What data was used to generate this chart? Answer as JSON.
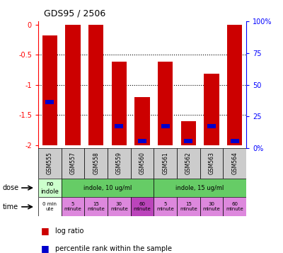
{
  "title": "GDS95 / 2506",
  "samples": [
    "GSM555",
    "GSM557",
    "GSM558",
    "GSM559",
    "GSM560",
    "GSM561",
    "GSM562",
    "GSM563",
    "GSM564"
  ],
  "log_ratio": [
    -0.18,
    0.0,
    0.0,
    -0.62,
    -1.2,
    -0.62,
    -1.6,
    -0.82,
    0.0
  ],
  "blue_y": [
    -1.32,
    null,
    null,
    -1.72,
    -1.97,
    -1.72,
    -1.97,
    -1.72,
    -1.97
  ],
  "ylim_left": [
    -2.05,
    0.05
  ],
  "yticks_left": [
    0,
    -0.5,
    -1.0,
    -1.5,
    -2.0
  ],
  "ytick_labels_left": [
    "0",
    "-0.5",
    "-1",
    "-1.5",
    "-2"
  ],
  "yticks_right": [
    0,
    25,
    50,
    75,
    100
  ],
  "ytick_labels_right": [
    "0%",
    "25",
    "50",
    "75",
    "100%"
  ],
  "bar_color": "#cc0000",
  "pct_color": "#0000cc",
  "chart_bg": "#ffffff",
  "sample_label_bg": "#cccccc",
  "dose_groups": [
    {
      "label": "no\nindole",
      "start": 0,
      "end": 1,
      "color": "#ccffcc"
    },
    {
      "label": "indole, 10 ug/ml",
      "start": 1,
      "end": 5,
      "color": "#66cc66"
    },
    {
      "label": "indole, 15 ug/ml",
      "start": 5,
      "end": 9,
      "color": "#66cc66"
    }
  ],
  "time_labels": [
    "0 min\nute",
    "5\nminute",
    "15\nminute",
    "30\nminute",
    "60\nminute",
    "5\nminute",
    "15\nminute",
    "30\nminute",
    "60\nminute"
  ],
  "time_colors": [
    "#ffffff",
    "#dd88dd",
    "#dd88dd",
    "#dd88dd",
    "#bb44bb",
    "#dd88dd",
    "#dd88dd",
    "#dd88dd",
    "#dd88dd"
  ],
  "hline_y": [
    -0.5,
    -1.0,
    -1.5
  ]
}
